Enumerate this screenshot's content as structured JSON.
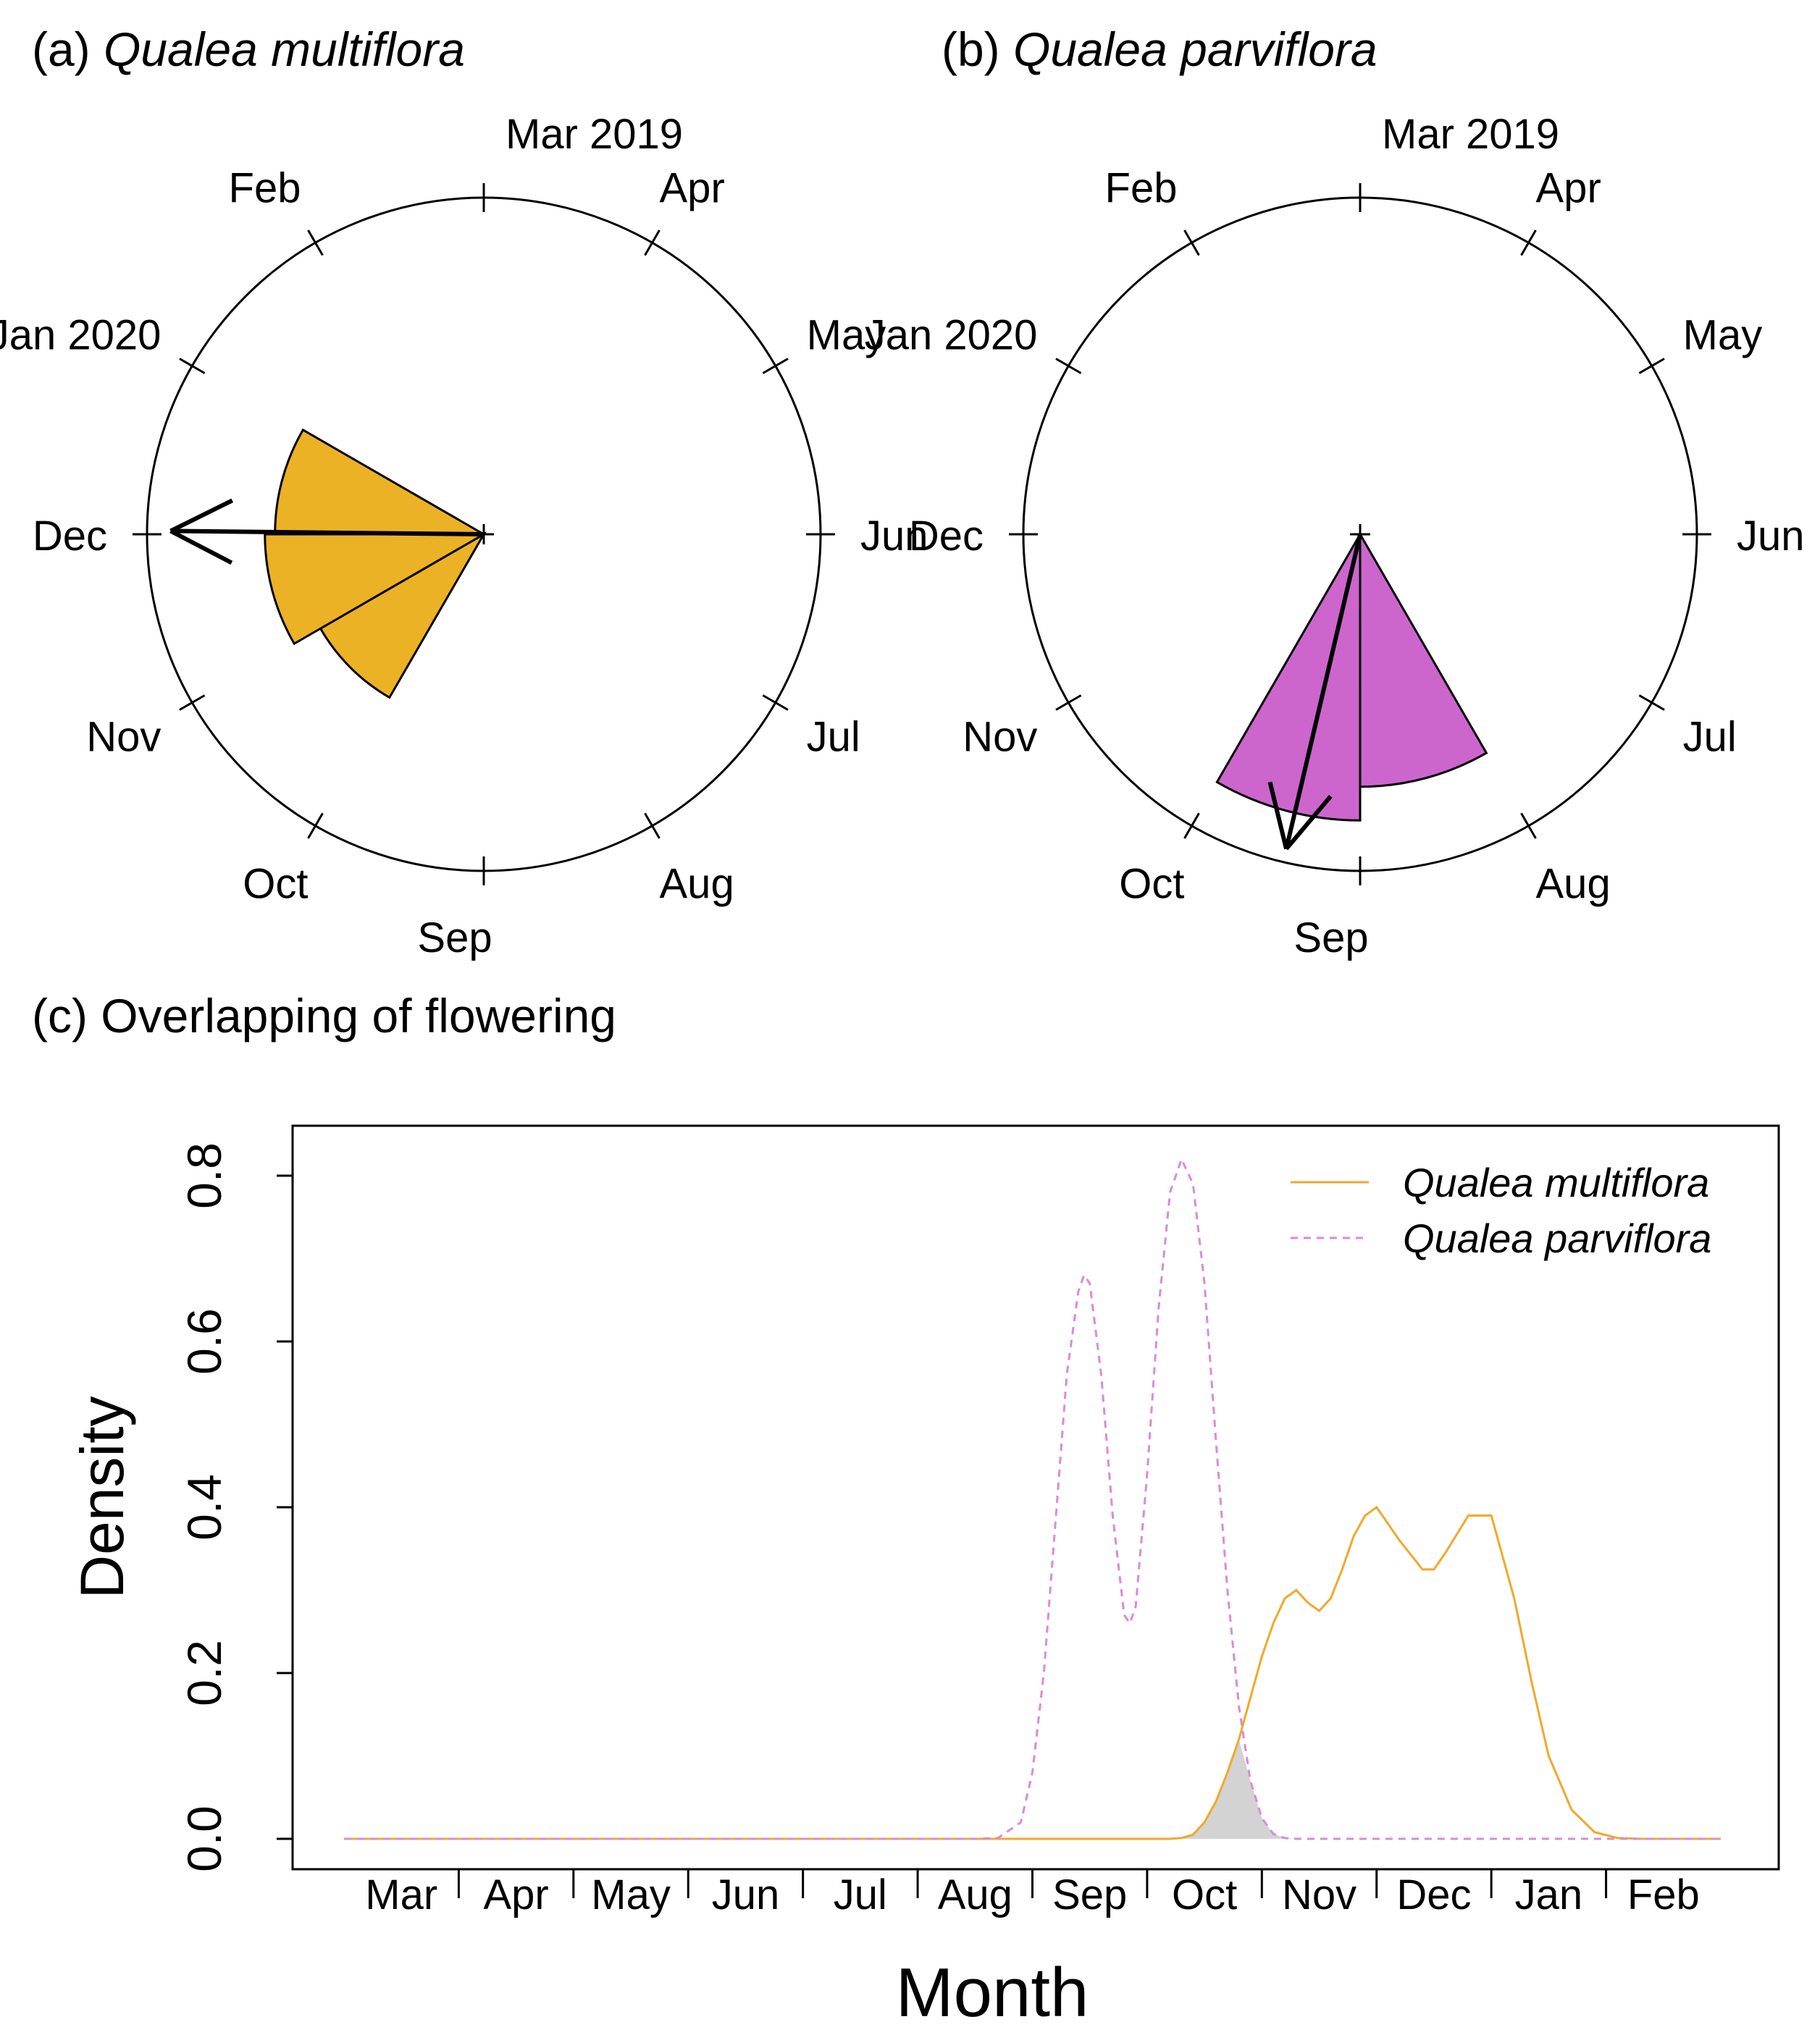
{
  "panels": {
    "a": {
      "label": "(a)",
      "species": "Qualea multiflora"
    },
    "b": {
      "label": "(b)",
      "species": "Qualea parviflora"
    },
    "c": {
      "title": "(c) Overlapping of flowering"
    }
  },
  "colors": {
    "multiflora": "#ecb226",
    "parviflora": "#cc66cc",
    "overlap": "#d3d3d3",
    "multiflora_line": "#f2a82a",
    "parviflora_line": "#d98ad9"
  },
  "chart_data": [
    {
      "type": "rose",
      "panel": "a",
      "title": "(a) Qualea multiflora",
      "month_labels": [
        "Mar 2019",
        "Apr",
        "May",
        "Jun",
        "Jul",
        "Aug",
        "Sep",
        "Oct",
        "Nov",
        "Dec",
        "Jan 2020",
        "Feb"
      ],
      "direction": "clockwise",
      "start": "top",
      "wedges": [
        {
          "month": "Nov",
          "relative_length": 0.56
        },
        {
          "month": "Dec",
          "relative_length": 0.65
        },
        {
          "month": "Jan",
          "relative_length": 0.62
        }
      ],
      "mean_vector": {
        "month_position": 9.02,
        "relative_length": 0.93
      }
    },
    {
      "type": "rose",
      "panel": "b",
      "title": "(b) Qualea parviflora",
      "month_labels": [
        "Mar 2019",
        "Apr",
        "May",
        "Jun",
        "Jul",
        "Aug",
        "Sep",
        "Oct",
        "Nov",
        "Dec",
        "Jan 2020",
        "Feb"
      ],
      "direction": "clockwise",
      "start": "top",
      "wedges": [
        {
          "month": "Sep",
          "relative_length": 0.75
        },
        {
          "month": "Oct",
          "relative_length": 0.85
        }
      ],
      "mean_vector": {
        "month_position": 6.44,
        "relative_length": 0.96
      }
    },
    {
      "type": "line",
      "panel": "c",
      "title": "(c) Overlapping of flowering",
      "xlabel": "Month",
      "ylabel": "Density",
      "categories": [
        "Mar",
        "Apr",
        "May",
        "Jun",
        "Jul",
        "Aug",
        "Sep",
        "Oct",
        "Nov",
        "Dec",
        "Jan",
        "Feb"
      ],
      "xlim": [
        0,
        12
      ],
      "ylim": [
        0,
        0.85
      ],
      "yticks": [
        0.0,
        0.2,
        0.4,
        0.6,
        0.8
      ],
      "ytick_labels": [
        "0.0",
        "0.2",
        "0.4",
        "0.6",
        "0.8"
      ],
      "legend_position": "top-right",
      "x": [
        0,
        5.5,
        5.7,
        5.9,
        6.0,
        6.1,
        6.2,
        6.3,
        6.4,
        6.45,
        6.5,
        6.6,
        6.7,
        6.8,
        6.85,
        6.9,
        7.0,
        7.1,
        7.2,
        7.3,
        7.4,
        7.5,
        7.6,
        7.7,
        7.8,
        7.9,
        8.0,
        8.1,
        8.2,
        8.3,
        8.4,
        8.5,
        8.6,
        8.7,
        8.8,
        8.9,
        9.0,
        9.2,
        9.4,
        9.5,
        9.6,
        9.8,
        10.0,
        10.2,
        10.35,
        10.5,
        10.7,
        10.9,
        11.1,
        11.3,
        11.5,
        11.7,
        12.0
      ],
      "series": [
        {
          "name": "Qualea multiflora",
          "style": "solid",
          "values": [
            0,
            0,
            0,
            0,
            0,
            0,
            0,
            0,
            0,
            0,
            0,
            0,
            0,
            0,
            0,
            0,
            0,
            0,
            0,
            0.001,
            0.005,
            0.02,
            0.045,
            0.08,
            0.12,
            0.17,
            0.22,
            0.26,
            0.29,
            0.3,
            0.285,
            0.275,
            0.29,
            0.325,
            0.365,
            0.39,
            0.4,
            0.36,
            0.325,
            0.325,
            0.345,
            0.39,
            0.39,
            0.29,
            0.19,
            0.1,
            0.035,
            0.008,
            0.001,
            0,
            0,
            0,
            0
          ]
        },
        {
          "name": "Qualea parviflora",
          "style": "dashed",
          "values": [
            0,
            0,
            0.001,
            0.02,
            0.08,
            0.2,
            0.38,
            0.56,
            0.66,
            0.68,
            0.67,
            0.56,
            0.39,
            0.27,
            0.26,
            0.28,
            0.44,
            0.64,
            0.78,
            0.82,
            0.79,
            0.67,
            0.48,
            0.3,
            0.16,
            0.07,
            0.025,
            0.006,
            0.001,
            0,
            0,
            0,
            0,
            0,
            0,
            0,
            0,
            0,
            0,
            0,
            0,
            0,
            0,
            0,
            0,
            0,
            0,
            0,
            0,
            0,
            0,
            0,
            0
          ]
        }
      ],
      "overlap_region": {
        "x_range": [
          7.2,
          8.2
        ],
        "label": "shaded overlap"
      }
    }
  ]
}
